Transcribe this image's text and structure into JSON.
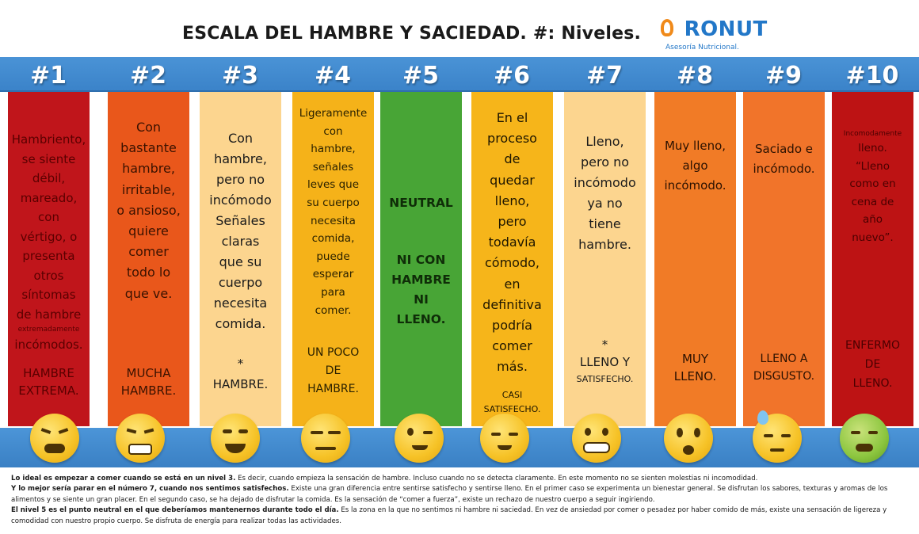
{
  "title": "ESCALA DEL HAMBRE Y SACIEDAD. #: Niveles.",
  "logo": {
    "brand_p": "P",
    "brand_rest": "RONUT",
    "tagline": "Asesoría Nutricional."
  },
  "levels": [
    {
      "num": "#1",
      "lines": [
        "Hambriento,",
        "se siente",
        "débil,",
        "mareado,",
        "con",
        "vértigo, o",
        "presenta",
        "otros",
        "síntomas",
        "de hambre"
      ],
      "small": "extremadamente",
      "lines2": [
        "incómodos."
      ],
      "bottom": [
        "HAMBRE",
        "EXTREMA."
      ],
      "face": "pain-face-icon"
    },
    {
      "num": "#2",
      "lines": [
        "Con",
        "bastante",
        "hambre,",
        "irritable,",
        "o ansioso,",
        "quiere",
        "comer",
        "todo lo",
        "que ve."
      ],
      "bottom": [
        "MUCHA",
        "HAMBRE."
      ],
      "face": "steaming-face-icon"
    },
    {
      "num": "#3",
      "lines": [
        "Con",
        "hambre,",
        "pero no",
        "incómodo",
        "Señales",
        "claras",
        "que su",
        "cuerpo",
        "necesita",
        "comida."
      ],
      "bottom": [
        "*",
        "HAMBRE."
      ],
      "face": "yum-face-icon"
    },
    {
      "num": "#4",
      "lines": [
        "Ligeramente",
        "con",
        "hambre,",
        "señales",
        "leves que",
        "su cuerpo",
        "necesita",
        "comida,",
        "puede",
        "esperar",
        "para",
        "comer."
      ],
      "bottom": [
        "UN POCO",
        "DE",
        "HAMBRE."
      ],
      "face": "expressionless-face-icon"
    },
    {
      "num": "#5",
      "lines": [
        "NEUTRAL"
      ],
      "bottom": [
        "NI CON",
        "HAMBRE",
        "NI",
        "LLENO."
      ],
      "face": "wink-face-icon"
    },
    {
      "num": "#6",
      "lines": [
        "En el",
        "proceso",
        "de",
        "quedar",
        "lleno,",
        "pero",
        "todavía",
        "cómodo,",
        "en",
        "definitiva",
        "podría",
        "comer",
        "más."
      ],
      "bottom": [
        "CASI",
        "SATISFECHO."
      ],
      "face": "relieved-face-icon"
    },
    {
      "num": "#7",
      "lines": [
        "Lleno,",
        "pero no",
        "incómodo",
        "ya no",
        "tiene",
        "hambre."
      ],
      "bottom": [
        "*",
        "LLENO Y",
        "SATISFECHO."
      ],
      "face": "grimace-face-icon"
    },
    {
      "num": "#8",
      "lines": [
        "Muy lleno,",
        "algo",
        "incómodo."
      ],
      "bottom": [
        "MUY",
        "LLENO."
      ],
      "face": "anxious-face-icon"
    },
    {
      "num": "#9",
      "lines": [
        "Saciado e",
        "incómodo."
      ],
      "bottom": [
        "LLENO A",
        "DISGUSTO."
      ],
      "face": "sweat-face-icon"
    },
    {
      "num": "#10",
      "small_top": "Incomodamente",
      "lines": [
        "lleno.",
        "“Lleno",
        "como en",
        "cena de",
        "año",
        "nuevo”."
      ],
      "bottom": [
        "ENFERMO",
        "DE",
        "LLENO."
      ],
      "face": "nauseated-face-icon"
    }
  ],
  "footer": {
    "p1_bold": "Lo ideal es empezar a comer cuando se está en un nivel 3.",
    "p1_rest": " Es decir, cuando empieza la sensación de hambre. Incluso cuando no se detecta claramente. En este momento no se sienten molestias ni incomodidad.",
    "p2_bold": "Y lo mejor sería parar en el número 7, cuando nos sentimos satisfechos.",
    "p2_rest": " Existe una gran diferencia entre sentirse satisfecho y sentirse lleno. En el primer caso se experimenta un bienestar general. Se disfrutan los sabores, texturas y aromas de los alimentos y se siente un gran placer. En el segundo caso, se ha dejado de disfrutar  la comida. Es la sensación de “comer a fuerza”, existe un rechazo de nuestro cuerpo a seguir ingiriendo.",
    "p3_bold": "El nivel 5 es el punto neutral en el que deberíamos mantenernos durante todo el día.",
    "p3_rest": " Es la zona en la que no sentimos ni hambre ni saciedad. En vez de ansiedad por comer o pesadez por haber comido de más, existe una sensación de ligereza y comodidad con nuestro propio cuerpo. Se disfruta de energía para realizar todas las actividades."
  }
}
